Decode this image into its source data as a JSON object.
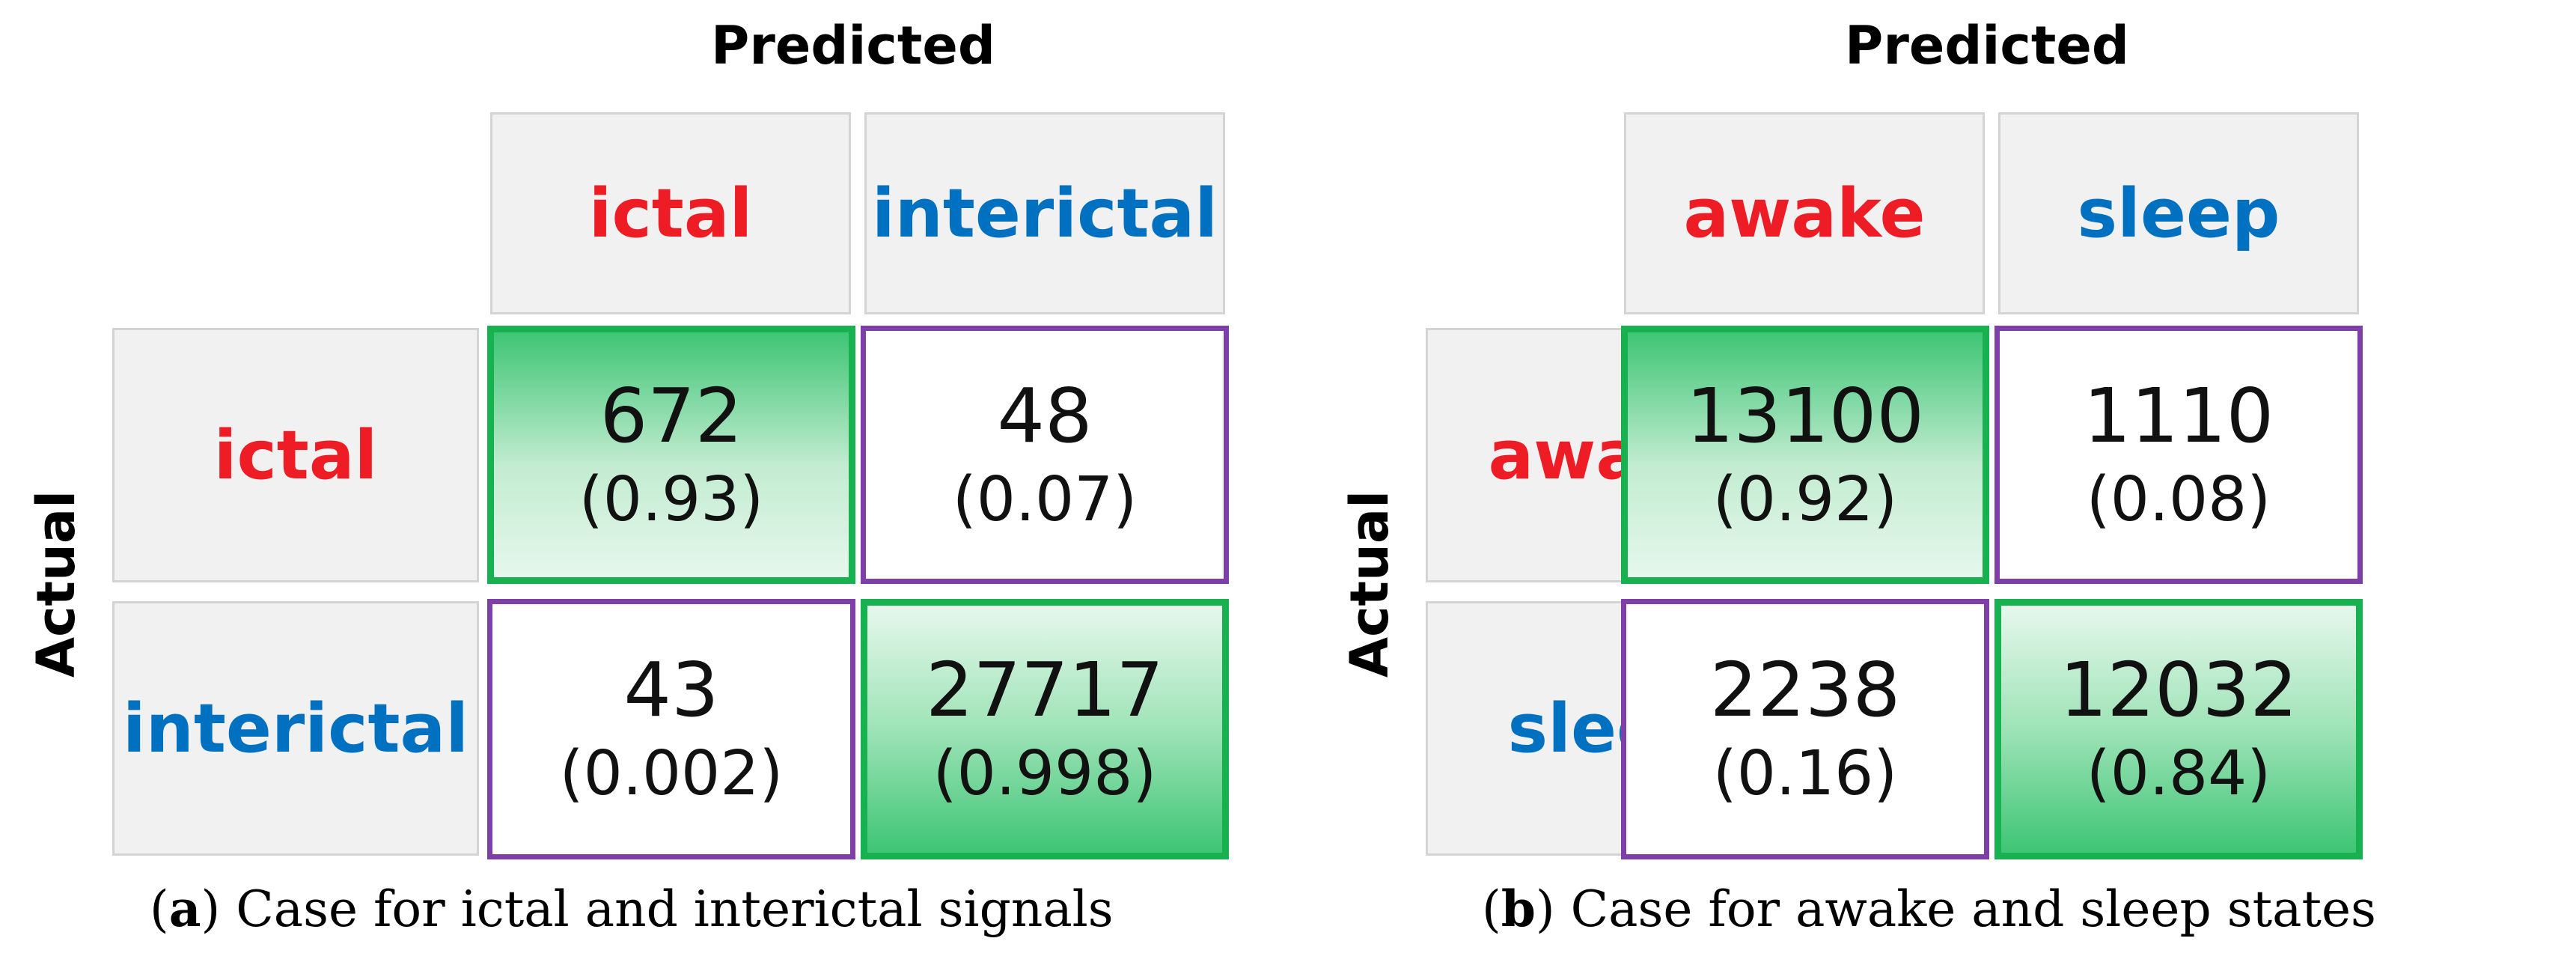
{
  "matrices": [
    {
      "predicted_title": "Predicted",
      "actual_title": "Actual",
      "labels": [
        {
          "text": "ictal",
          "color": "#ee1c24"
        },
        {
          "text": "interictal",
          "color": "#0070c0"
        }
      ],
      "cells": [
        [
          {
            "count": "672",
            "ratio": "(0.93)"
          },
          {
            "count": "48",
            "ratio": "(0.07)"
          }
        ],
        [
          {
            "count": "43",
            "ratio": "(0.002)"
          },
          {
            "count": "27717",
            "ratio": "(0.998)"
          }
        ]
      ],
      "caption": {
        "open": "(",
        "letter": "a",
        "close": ")",
        "text": " Case for ictal and interictal signals"
      }
    },
    {
      "predicted_title": "Predicted",
      "actual_title": "Actual",
      "labels": [
        {
          "text": "awake",
          "color": "#ee1c24"
        },
        {
          "text": "sleep",
          "color": "#0070c0"
        }
      ],
      "cells": [
        [
          {
            "count": "13100",
            "ratio": "(0.92)"
          },
          {
            "count": "1110",
            "ratio": "(0.08)"
          }
        ],
        [
          {
            "count": "2238",
            "ratio": "(0.16)"
          },
          {
            "count": "12032",
            "ratio": "(0.84)"
          }
        ]
      ],
      "caption": {
        "open": "(",
        "letter": "b",
        "close": ")",
        "text": " Case for awake and sleep states"
      }
    }
  ],
  "colors": {
    "correct_border": "#17b24f",
    "wrong_border": "#7f3fa8",
    "header_background": "#f1f1f1"
  }
}
